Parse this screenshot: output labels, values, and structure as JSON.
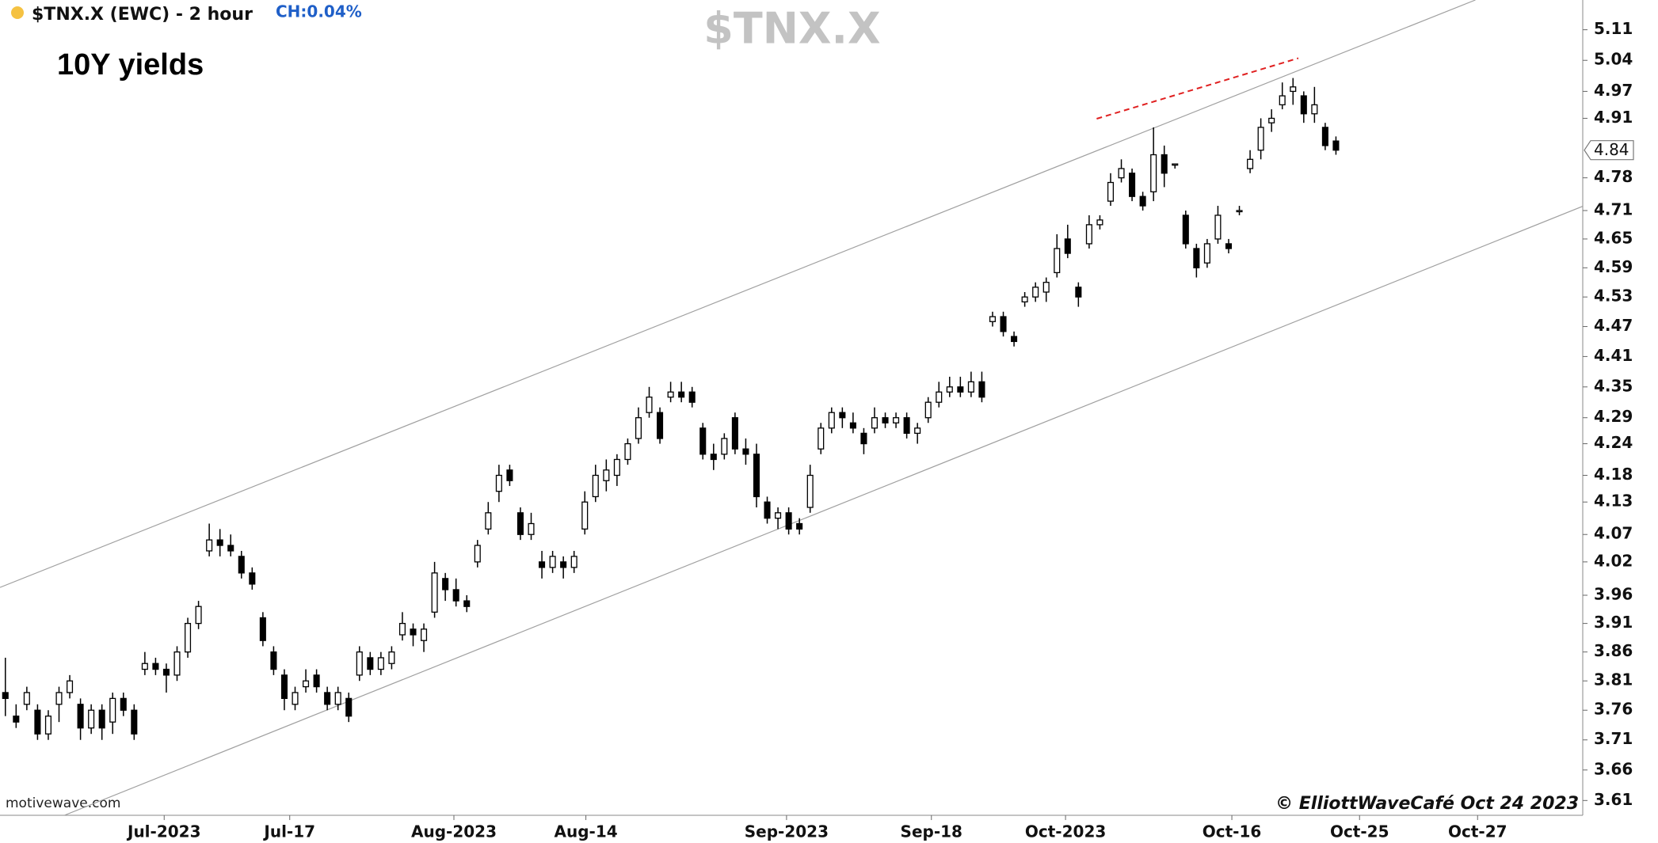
{
  "chart_data": {
    "type": "candlestick",
    "title": "$TNX.X",
    "subtitle": "$TNX.X (EWC) - 2 hour",
    "change": "CH:0.04%",
    "annotation": "10Y yields",
    "watermark": "motivewave.com",
    "copyright": "© ElliottWaveCafé Oct 24 2023",
    "last_price": 4.84,
    "log": true,
    "grid": false,
    "ylim": [
      3.586,
      5.179
    ],
    "yticks": [
      5.11,
      5.04,
      4.97,
      4.91,
      4.78,
      4.71,
      4.65,
      4.59,
      4.53,
      4.47,
      4.41,
      4.35,
      4.29,
      4.24,
      4.18,
      4.13,
      4.07,
      4.02,
      3.96,
      3.91,
      3.86,
      3.81,
      3.76,
      3.71,
      3.66,
      3.61
    ],
    "xlim": [
      -0.5,
      147
    ],
    "xticks": [
      {
        "value": 14.8,
        "label": "Jul-2023"
      },
      {
        "value": 26.5,
        "label": "Jul-17"
      },
      {
        "value": 41.8,
        "label": "Aug-2023"
      },
      {
        "value": 54.1,
        "label": "Aug-14"
      },
      {
        "value": 72.8,
        "label": "Sep-2023"
      },
      {
        "value": 86.3,
        "label": "Sep-18"
      },
      {
        "value": 98.8,
        "label": "Oct-2023"
      },
      {
        "value": 114.3,
        "label": "Oct-16"
      },
      {
        "value": 126.2,
        "label": "Oct-25"
      },
      {
        "value": 137.2,
        "label": "Oct-27"
      }
    ],
    "up_color": "#ffffff",
    "down_color": "#000000",
    "open": [
      3.79,
      3.75,
      3.77,
      3.76,
      3.72,
      3.77,
      3.79,
      3.77,
      3.73,
      3.76,
      3.74,
      3.78,
      3.76,
      3.83,
      3.84,
      3.83,
      3.82,
      3.86,
      3.91,
      4.04,
      4.06,
      4.05,
      4.03,
      4.0,
      3.92,
      3.86,
      3.82,
      3.77,
      3.8,
      3.82,
      3.79,
      3.77,
      3.78,
      3.82,
      3.85,
      3.83,
      3.84,
      3.89,
      3.9,
      3.88,
      3.93,
      3.99,
      3.97,
      3.95,
      4.02,
      4.08,
      4.15,
      4.19,
      4.11,
      4.07,
      4.02,
      4.01,
      4.02,
      4.01,
      4.08,
      4.14,
      4.17,
      4.18,
      4.21,
      4.25,
      4.3,
      4.3,
      4.33,
      4.34,
      4.34,
      4.27,
      4.22,
      4.22,
      4.29,
      4.23,
      4.22,
      4.13,
      4.1,
      4.11,
      4.09,
      4.12,
      4.23,
      4.27,
      4.3,
      4.28,
      4.26,
      4.27,
      4.29,
      4.28,
      4.29,
      4.26,
      4.29,
      4.32,
      4.34,
      4.35,
      4.34,
      4.36,
      4.48,
      4.49,
      4.45,
      4.52,
      4.53,
      4.54,
      4.58,
      4.65,
      4.55,
      4.64,
      4.68,
      4.73,
      4.78,
      4.79,
      4.74,
      4.75,
      4.83,
      4.81,
      4.7,
      4.63,
      4.6,
      4.65,
      4.64,
      4.71,
      4.8,
      4.84,
      4.9,
      4.94,
      4.97,
      4.96,
      4.92,
      4.89,
      4.86
    ],
    "high": [
      3.85,
      3.77,
      3.8,
      3.77,
      3.76,
      3.8,
      3.82,
      3.78,
      3.77,
      3.77,
      3.79,
      3.79,
      3.77,
      3.86,
      3.85,
      3.84,
      3.87,
      3.92,
      3.95,
      4.09,
      4.08,
      4.07,
      4.04,
      4.01,
      3.93,
      3.87,
      3.83,
      3.8,
      3.83,
      3.83,
      3.8,
      3.8,
      3.79,
      3.87,
      3.86,
      3.86,
      3.87,
      3.93,
      3.91,
      3.91,
      4.02,
      4.0,
      3.99,
      3.96,
      4.06,
      4.13,
      4.2,
      4.2,
      4.12,
      4.11,
      4.04,
      4.04,
      4.03,
      4.04,
      4.15,
      4.2,
      4.21,
      4.22,
      4.25,
      4.31,
      4.35,
      4.31,
      4.36,
      4.36,
      4.35,
      4.28,
      4.24,
      4.26,
      4.3,
      4.25,
      4.24,
      4.14,
      4.12,
      4.12,
      4.1,
      4.2,
      4.28,
      4.31,
      4.31,
      4.3,
      4.27,
      4.31,
      4.3,
      4.3,
      4.3,
      4.28,
      4.33,
      4.36,
      4.37,
      4.37,
      4.38,
      4.38,
      4.5,
      4.5,
      4.46,
      4.54,
      4.56,
      4.57,
      4.66,
      4.68,
      4.56,
      4.7,
      4.7,
      4.79,
      4.82,
      4.8,
      4.75,
      4.89,
      4.85,
      4.81,
      4.71,
      4.64,
      4.65,
      4.72,
      4.65,
      4.72,
      4.84,
      4.91,
      4.93,
      4.99,
      5.0,
      4.97,
      4.98,
      4.9,
      4.87
    ],
    "low": [
      3.75,
      3.73,
      3.76,
      3.71,
      3.71,
      3.74,
      3.78,
      3.71,
      3.72,
      3.71,
      3.72,
      3.75,
      3.71,
      3.82,
      3.82,
      3.79,
      3.81,
      3.85,
      3.9,
      4.03,
      4.03,
      4.03,
      3.99,
      3.97,
      3.87,
      3.82,
      3.76,
      3.76,
      3.79,
      3.79,
      3.76,
      3.76,
      3.74,
      3.81,
      3.82,
      3.82,
      3.83,
      3.88,
      3.87,
      3.86,
      3.92,
      3.95,
      3.94,
      3.93,
      4.01,
      4.07,
      4.13,
      4.16,
      4.06,
      4.06,
      3.99,
      4.0,
      3.99,
      4.0,
      4.07,
      4.13,
      4.15,
      4.16,
      4.2,
      4.24,
      4.29,
      4.24,
      4.32,
      4.32,
      4.31,
      4.21,
      4.19,
      4.21,
      4.22,
      4.2,
      4.12,
      4.09,
      4.08,
      4.07,
      4.07,
      4.11,
      4.22,
      4.26,
      4.27,
      4.26,
      4.22,
      4.26,
      4.27,
      4.27,
      4.25,
      4.24,
      4.28,
      4.31,
      4.33,
      4.33,
      4.33,
      4.32,
      4.47,
      4.45,
      4.43,
      4.51,
      4.52,
      4.52,
      4.57,
      4.61,
      4.51,
      4.63,
      4.67,
      4.72,
      4.77,
      4.73,
      4.71,
      4.73,
      4.76,
      4.8,
      4.63,
      4.57,
      4.59,
      4.64,
      4.62,
      4.7,
      4.79,
      4.82,
      4.88,
      4.93,
      4.94,
      4.9,
      4.9,
      4.84,
      4.83
    ],
    "close": [
      3.78,
      3.74,
      3.79,
      3.72,
      3.75,
      3.79,
      3.81,
      3.73,
      3.76,
      3.73,
      3.78,
      3.76,
      3.72,
      3.84,
      3.83,
      3.82,
      3.86,
      3.91,
      3.94,
      4.06,
      4.05,
      4.04,
      4.0,
      3.98,
      3.88,
      3.83,
      3.78,
      3.79,
      3.81,
      3.8,
      3.77,
      3.79,
      3.75,
      3.86,
      3.83,
      3.85,
      3.86,
      3.91,
      3.89,
      3.9,
      4.0,
      3.97,
      3.95,
      3.94,
      4.05,
      4.11,
      4.18,
      4.17,
      4.07,
      4.09,
      4.01,
      4.03,
      4.01,
      4.03,
      4.13,
      4.18,
      4.19,
      4.21,
      4.24,
      4.29,
      4.33,
      4.25,
      4.34,
      4.33,
      4.32,
      4.22,
      4.21,
      4.25,
      4.23,
      4.22,
      4.14,
      4.1,
      4.11,
      4.08,
      4.08,
      4.18,
      4.27,
      4.3,
      4.29,
      4.27,
      4.24,
      4.29,
      4.28,
      4.29,
      4.26,
      4.27,
      4.32,
      4.34,
      4.35,
      4.34,
      4.36,
      4.33,
      4.49,
      4.46,
      4.44,
      4.53,
      4.55,
      4.56,
      4.63,
      4.62,
      4.53,
      4.68,
      4.69,
      4.77,
      4.8,
      4.74,
      4.72,
      4.83,
      4.79,
      4.81,
      4.64,
      4.59,
      4.64,
      4.7,
      4.63,
      4.71,
      4.82,
      4.89,
      4.91,
      4.96,
      4.98,
      4.92,
      4.94,
      4.85,
      4.84
    ],
    "trendlines": [
      {
        "x": [
          -0.5,
          137
        ],
        "y": [
          3.974,
          5.179
        ],
        "color": "#a0a0a0",
        "dashed": false
      },
      {
        "x": [
          5.5,
          147
        ],
        "y": [
          3.586,
          4.719
        ],
        "color": "#a0a0a0",
        "dashed": false
      },
      {
        "x": [
          101.7,
          120.5
        ],
        "y": [
          4.909,
          5.045
        ],
        "color": "#e02020",
        "dashed": true
      }
    ]
  }
}
